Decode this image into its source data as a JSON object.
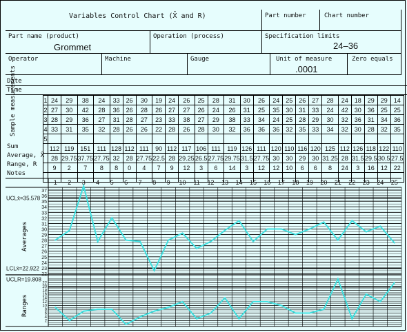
{
  "header": {
    "title": "Variables Control Chart (X̄ and R)",
    "part_number_label": "Part number",
    "chart_number_label": "Chart number",
    "part_name_label": "Part name (product)",
    "part_name_value": "Grommet",
    "operation_label": "Operation (process)",
    "spec_limits_label": "Specification limits",
    "spec_limits_value": "24–36",
    "operator_label": "Operator",
    "machine_label": "Machine",
    "gauge_label": "Gauge",
    "unit_label": "Unit of measure",
    "unit_value": ".0001",
    "zero_label": "Zero equals"
  },
  "rows": {
    "date": "Date",
    "time": "Time",
    "sample_label": "Sample measurements",
    "sum": "Sum",
    "average": "Average, X̄",
    "range": "Range, R",
    "notes": "Notes"
  },
  "sample_numbers": [
    "1",
    "2",
    "3",
    "4",
    "5"
  ],
  "columns": [
    "1",
    "2",
    "3",
    "4",
    "5",
    "6",
    "7",
    "8",
    "9",
    "10",
    "11",
    "12",
    "13",
    "14",
    "15",
    "16",
    "17",
    "18",
    "19",
    "20",
    "21",
    "22",
    "23",
    "24",
    "25"
  ],
  "measurements": [
    [
      "24",
      "29",
      "38",
      "24",
      "33",
      "26",
      "30",
      "19",
      "24",
      "26",
      "25",
      "28",
      "31",
      "30",
      "26",
      "24",
      "25",
      "26",
      "27",
      "28",
      "24",
      "18",
      "29",
      "29",
      "14"
    ],
    [
      "27",
      "30",
      "42",
      "28",
      "36",
      "26",
      "28",
      "26",
      "27",
      "27",
      "26",
      "24",
      "26",
      "31",
      "25",
      "35",
      "30",
      "31",
      "33",
      "24",
      "42",
      "30",
      "36",
      "25",
      "25"
    ],
    [
      "28",
      "29",
      "36",
      "27",
      "31",
      "28",
      "27",
      "23",
      "33",
      "38",
      "27",
      "29",
      "38",
      "33",
      "34",
      "24",
      "25",
      "28",
      "29",
      "30",
      "32",
      "36",
      "31",
      "34",
      "36"
    ],
    [
      "33",
      "31",
      "35",
      "32",
      "28",
      "26",
      "26",
      "22",
      "28",
      "26",
      "28",
      "30",
      "32",
      "36",
      "36",
      "36",
      "32",
      "35",
      "33",
      "34",
      "32",
      "30",
      "28",
      "32",
      "35"
    ]
  ],
  "sums": [
    "112",
    "119",
    "151",
    "111",
    "128",
    "112",
    "111",
    "90",
    "112",
    "117",
    "106",
    "111",
    "119",
    "126",
    "111",
    "120",
    "110",
    "116",
    "120",
    "125",
    "112",
    "126",
    "118",
    "122",
    "110"
  ],
  "averages": [
    "28",
    "29.75",
    "37.75",
    "27.75",
    "32",
    "28",
    "27.75",
    "22.5",
    "28",
    "29.25",
    "26.5",
    "27.75",
    "29.75",
    "31.5",
    "27.75",
    "30",
    "30",
    "29",
    "30",
    "31.25",
    "28",
    "31.5",
    "29.5",
    "30.5",
    "27.5"
  ],
  "ranges": [
    "9",
    "2",
    "7",
    "8",
    "8",
    "0",
    "4",
    "7",
    "9",
    "12",
    "3",
    "6",
    "14",
    "3",
    "12",
    "12",
    "10",
    "6",
    "6",
    "8",
    "24",
    "3",
    "16",
    "12",
    "22"
  ],
  "chart": {
    "ucl_x_label": "UCLx̄=35.578",
    "lcl_x_label": "LCLx̄=22.922",
    "ucl_r_label": "UCLR=19.808",
    "averages_axis": "Averages",
    "ranges_axis": "Ranges",
    "avg_ticks": [
      "37",
      "36",
      "35",
      "34",
      "33",
      "32",
      "31",
      "30",
      "29",
      "28",
      "27",
      "26",
      "25",
      "24",
      "23",
      "22"
    ],
    "range_ticks": [
      "22",
      "20",
      "18",
      "16",
      "14",
      "12",
      "10",
      "8",
      "6",
      "4",
      "2"
    ],
    "line_color": "#3fe0e0"
  },
  "chart_data": [
    {
      "type": "line",
      "title": "Averages",
      "x": [
        1,
        2,
        3,
        4,
        5,
        6,
        7,
        8,
        9,
        10,
        11,
        12,
        13,
        14,
        15,
        16,
        17,
        18,
        19,
        20,
        21,
        22,
        23,
        24,
        25
      ],
      "values": [
        28,
        29.75,
        37.75,
        27.75,
        32,
        28,
        27.75,
        22.5,
        28,
        29.25,
        26.5,
        27.75,
        29.75,
        31.5,
        27.75,
        30,
        30,
        29,
        30,
        31.25,
        28,
        31.5,
        29.5,
        30.5,
        27.5
      ],
      "ylim": [
        22,
        37
      ]
    },
    {
      "type": "line",
      "title": "Ranges",
      "x": [
        1,
        2,
        3,
        4,
        5,
        6,
        7,
        8,
        9,
        10,
        11,
        12,
        13,
        14,
        15,
        16,
        17,
        18,
        19,
        20,
        21,
        22,
        23,
        24,
        25
      ],
      "values": [
        9,
        2,
        7,
        8,
        8,
        0,
        4,
        7,
        9,
        12,
        3,
        6,
        14,
        3,
        12,
        12,
        10,
        6,
        6,
        8,
        24,
        3,
        16,
        12,
        22
      ],
      "ylim": [
        0,
        24
      ]
    }
  ]
}
